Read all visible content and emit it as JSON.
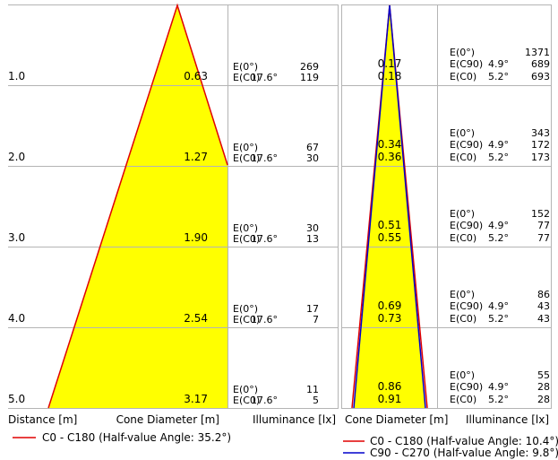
{
  "colors": {
    "grid": "#b4b4b4",
    "cone_fill": "#ffff00",
    "c0_line": "#e00000",
    "c90_line": "#0000cc",
    "text": "#000000"
  },
  "footer": {
    "left": {
      "distance_header": "Distance [m]",
      "cone_header": "Cone Diameter [m]",
      "illum_header": "Illuminance [lx]"
    },
    "right": {
      "cone_header": "Cone Diameter [m]",
      "illum_header": "Illuminance [lx]"
    }
  },
  "legend": {
    "left": [
      {
        "label": "C0 - C180 (Half-value Angle: 35.2°)",
        "color": "#e00000"
      }
    ],
    "right": [
      {
        "label": "C0 - C180 (Half-value Angle: 10.4°)",
        "color": "#e00000"
      },
      {
        "label": "C90 - C270 (Half-value Angle: 9.8°)",
        "color": "#0000cc"
      }
    ]
  },
  "chart_data": [
    {
      "type": "table",
      "rows": [
        {
          "distance": "1.0",
          "diameter": "0.63",
          "e_center_label": "E(0°)",
          "e_center": "269",
          "e_c0_label": "E(C0)",
          "angle": "17.6°",
          "e_c0": "119"
        },
        {
          "distance": "2.0",
          "diameter": "1.27",
          "e_center_label": "E(0°)",
          "e_center": "67",
          "e_c0_label": "E(C0)",
          "angle": "17.6°",
          "e_c0": "30"
        },
        {
          "distance": "3.0",
          "diameter": "1.90",
          "e_center_label": "E(0°)",
          "e_center": "30",
          "e_c0_label": "E(C0)",
          "angle": "17.6°",
          "e_c0": "13"
        },
        {
          "distance": "4.0",
          "diameter": "2.54",
          "e_center_label": "E(0°)",
          "e_center": "17",
          "e_c0_label": "E(C0)",
          "angle": "17.6°",
          "e_c0": "7"
        },
        {
          "distance": "5.0",
          "diameter": "3.17",
          "e_center_label": "E(0°)",
          "e_center": "11",
          "e_c0_label": "E(C0)",
          "angle": "17.6°",
          "e_c0": "5"
        }
      ]
    },
    {
      "type": "table",
      "rows": [
        {
          "diam_c90": "0.17",
          "diam_c0": "0.18",
          "e_center_label": "E(0°)",
          "e_center": "1371",
          "e_c90_label": "E(C90)",
          "angle_c90": "4.9°",
          "e_c90": "689",
          "e_c0_label": "E(C0)",
          "angle_c0": "5.2°",
          "e_c0": "693"
        },
        {
          "diam_c90": "0.34",
          "diam_c0": "0.36",
          "e_center_label": "E(0°)",
          "e_center": "343",
          "e_c90_label": "E(C90)",
          "angle_c90": "4.9°",
          "e_c90": "172",
          "e_c0_label": "E(C0)",
          "angle_c0": "5.2°",
          "e_c0": "173"
        },
        {
          "diam_c90": "0.51",
          "diam_c0": "0.55",
          "e_center_label": "E(0°)",
          "e_center": "152",
          "e_c90_label": "E(C90)",
          "angle_c90": "4.9°",
          "e_c90": "77",
          "e_c0_label": "E(C0)",
          "angle_c0": "5.2°",
          "e_c0": "77"
        },
        {
          "diam_c90": "0.69",
          "diam_c0": "0.73",
          "e_center_label": "E(0°)",
          "e_center": "86",
          "e_c90_label": "E(C90)",
          "angle_c90": "4.9°",
          "e_c90": "43",
          "e_c0_label": "E(C0)",
          "angle_c0": "5.2°",
          "e_c0": "43"
        },
        {
          "diam_c90": "0.86",
          "diam_c0": "0.91",
          "e_center_label": "E(0°)",
          "e_center": "55",
          "e_c90_label": "E(C90)",
          "angle_c90": "4.9°",
          "e_c90": "28",
          "e_c0_label": "E(C0)",
          "angle_c0": "5.2°",
          "e_c0": "28"
        }
      ]
    }
  ]
}
